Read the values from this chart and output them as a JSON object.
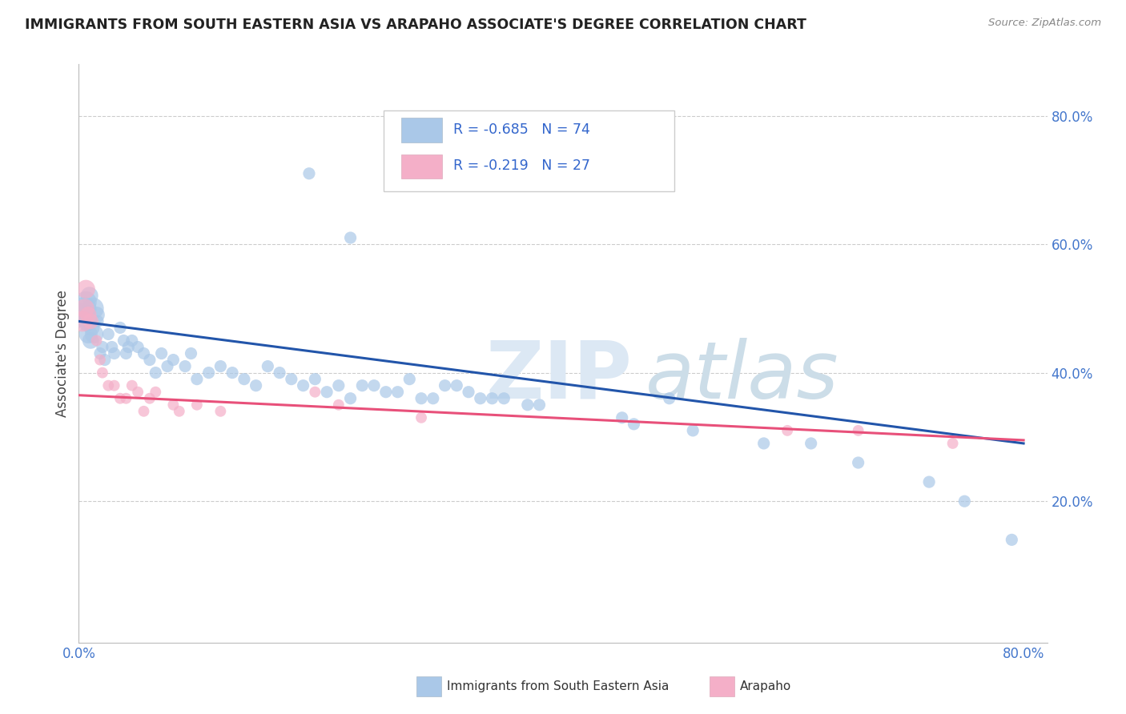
{
  "title": "IMMIGRANTS FROM SOUTH EASTERN ASIA VS ARAPAHO ASSOCIATE'S DEGREE CORRELATION CHART",
  "source": "Source: ZipAtlas.com",
  "ylabel": "Associate's Degree",
  "xlim": [
    0.0,
    0.82
  ],
  "ylim": [
    -0.02,
    0.88
  ],
  "xticks": [
    0.0,
    0.1,
    0.2,
    0.3,
    0.4,
    0.5,
    0.6,
    0.7,
    0.8
  ],
  "xticklabels": [
    "0.0%",
    "",
    "",
    "",
    "",
    "",
    "",
    "",
    "80.0%"
  ],
  "ytick_positions": [
    0.2,
    0.4,
    0.6,
    0.8
  ],
  "ytick_labels": [
    "20.0%",
    "40.0%",
    "60.0%",
    "80.0%"
  ],
  "blue_color": "#aac8e8",
  "pink_color": "#f4afc8",
  "blue_line_color": "#2255aa",
  "pink_line_color": "#e8507a",
  "legend_text_color": "#3366cc",
  "blue_scatter": [
    [
      0.003,
      0.49
    ],
    [
      0.005,
      0.5
    ],
    [
      0.006,
      0.51
    ],
    [
      0.007,
      0.48
    ],
    [
      0.008,
      0.46
    ],
    [
      0.009,
      0.52
    ],
    [
      0.01,
      0.45
    ],
    [
      0.011,
      0.47
    ],
    [
      0.012,
      0.5
    ],
    [
      0.013,
      0.46
    ],
    [
      0.015,
      0.49
    ],
    [
      0.016,
      0.48
    ],
    [
      0.018,
      0.43
    ],
    [
      0.02,
      0.44
    ],
    [
      0.022,
      0.42
    ],
    [
      0.025,
      0.46
    ],
    [
      0.028,
      0.44
    ],
    [
      0.03,
      0.43
    ],
    [
      0.035,
      0.47
    ],
    [
      0.038,
      0.45
    ],
    [
      0.04,
      0.43
    ],
    [
      0.042,
      0.44
    ],
    [
      0.045,
      0.45
    ],
    [
      0.05,
      0.44
    ],
    [
      0.055,
      0.43
    ],
    [
      0.06,
      0.42
    ],
    [
      0.065,
      0.4
    ],
    [
      0.07,
      0.43
    ],
    [
      0.075,
      0.41
    ],
    [
      0.08,
      0.42
    ],
    [
      0.09,
      0.41
    ],
    [
      0.095,
      0.43
    ],
    [
      0.1,
      0.39
    ],
    [
      0.11,
      0.4
    ],
    [
      0.12,
      0.41
    ],
    [
      0.13,
      0.4
    ],
    [
      0.14,
      0.39
    ],
    [
      0.15,
      0.38
    ],
    [
      0.16,
      0.41
    ],
    [
      0.17,
      0.4
    ],
    [
      0.18,
      0.39
    ],
    [
      0.19,
      0.38
    ],
    [
      0.2,
      0.39
    ],
    [
      0.21,
      0.37
    ],
    [
      0.22,
      0.38
    ],
    [
      0.23,
      0.36
    ],
    [
      0.24,
      0.38
    ],
    [
      0.25,
      0.38
    ],
    [
      0.26,
      0.37
    ],
    [
      0.27,
      0.37
    ],
    [
      0.28,
      0.39
    ],
    [
      0.29,
      0.36
    ],
    [
      0.3,
      0.36
    ],
    [
      0.31,
      0.38
    ],
    [
      0.32,
      0.38
    ],
    [
      0.33,
      0.37
    ],
    [
      0.34,
      0.36
    ],
    [
      0.35,
      0.36
    ],
    [
      0.36,
      0.36
    ],
    [
      0.38,
      0.35
    ],
    [
      0.39,
      0.35
    ],
    [
      0.46,
      0.33
    ],
    [
      0.47,
      0.32
    ],
    [
      0.5,
      0.36
    ],
    [
      0.52,
      0.31
    ],
    [
      0.58,
      0.29
    ],
    [
      0.62,
      0.29
    ],
    [
      0.66,
      0.26
    ],
    [
      0.72,
      0.23
    ],
    [
      0.75,
      0.2
    ],
    [
      0.79,
      0.14
    ],
    [
      0.195,
      0.71
    ],
    [
      0.23,
      0.61
    ]
  ],
  "pink_scatter": [
    [
      0.003,
      0.48
    ],
    [
      0.005,
      0.5
    ],
    [
      0.006,
      0.53
    ],
    [
      0.008,
      0.49
    ],
    [
      0.01,
      0.48
    ],
    [
      0.015,
      0.45
    ],
    [
      0.018,
      0.42
    ],
    [
      0.02,
      0.4
    ],
    [
      0.025,
      0.38
    ],
    [
      0.03,
      0.38
    ],
    [
      0.035,
      0.36
    ],
    [
      0.04,
      0.36
    ],
    [
      0.045,
      0.38
    ],
    [
      0.05,
      0.37
    ],
    [
      0.055,
      0.34
    ],
    [
      0.06,
      0.36
    ],
    [
      0.065,
      0.37
    ],
    [
      0.08,
      0.35
    ],
    [
      0.085,
      0.34
    ],
    [
      0.1,
      0.35
    ],
    [
      0.12,
      0.34
    ],
    [
      0.2,
      0.37
    ],
    [
      0.22,
      0.35
    ],
    [
      0.29,
      0.33
    ],
    [
      0.6,
      0.31
    ],
    [
      0.66,
      0.31
    ],
    [
      0.74,
      0.29
    ]
  ],
  "blue_line": [
    [
      0.0,
      0.48
    ],
    [
      0.8,
      0.29
    ]
  ],
  "pink_line": [
    [
      0.0,
      0.365
    ],
    [
      0.8,
      0.295
    ]
  ],
  "blue_dot_size": 120,
  "pink_dot_size": 100,
  "blue_large_sizes": [
    500,
    450,
    380,
    320,
    280,
    250,
    220,
    200,
    380,
    280,
    220
  ],
  "pink_large_sizes": [
    350,
    300,
    280,
    220,
    200
  ]
}
